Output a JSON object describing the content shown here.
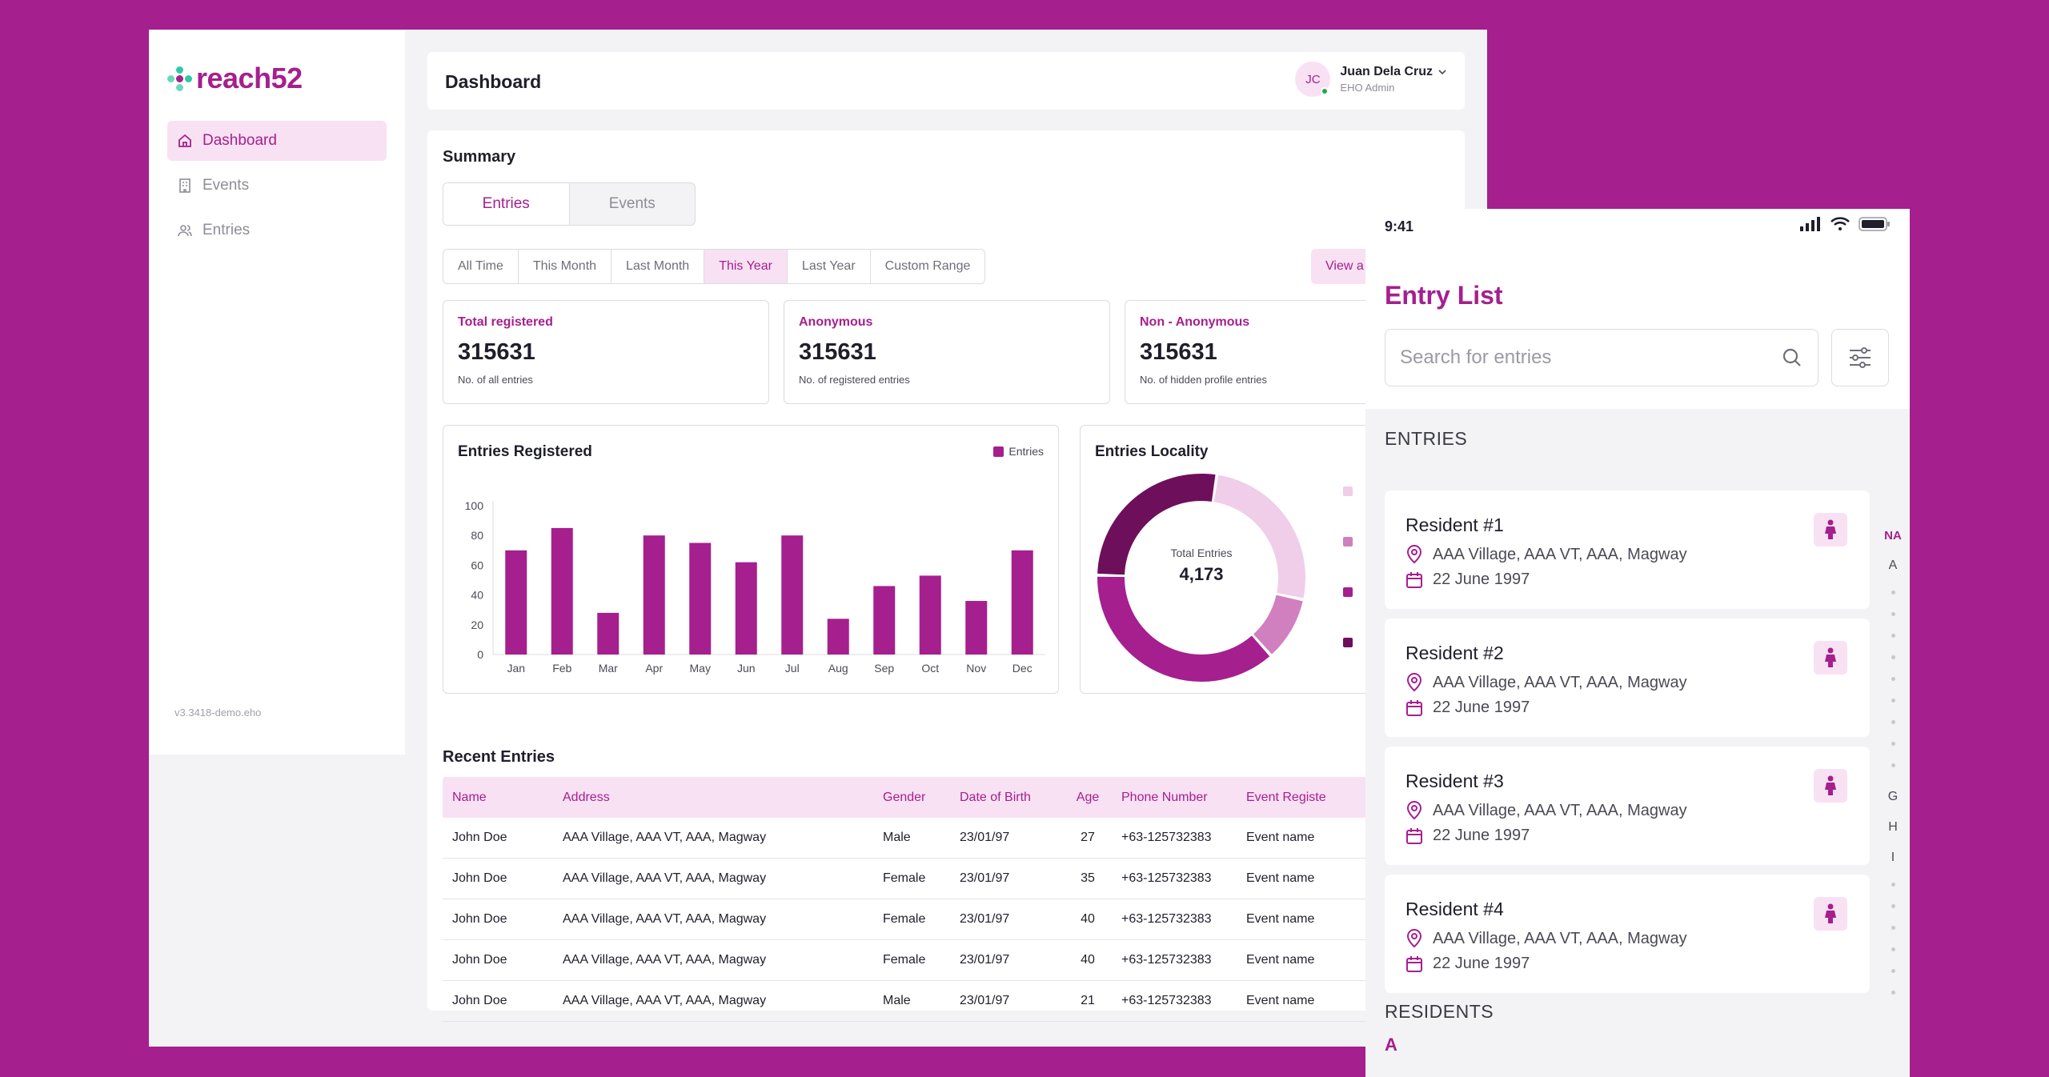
{
  "brand": {
    "name": "reach52",
    "accent": "#a51f8e",
    "accent_light": "#f8e1f3"
  },
  "sidebar": {
    "items": [
      {
        "label": "Dashboard",
        "icon": "home-icon",
        "active": true
      },
      {
        "label": "Events",
        "icon": "building-icon",
        "active": false
      },
      {
        "label": "Entries",
        "icon": "users-icon",
        "active": false
      }
    ],
    "version": "v3.3418-demo.eho"
  },
  "header": {
    "title": "Dashboard",
    "user": {
      "initials": "JC",
      "name": "Juan Dela Cruz",
      "role": "EHO Admin"
    }
  },
  "summary": {
    "title": "Summary",
    "tabs": [
      "Entries",
      "Events"
    ],
    "active_tab": "Entries",
    "filters": [
      "All Time",
      "This Month",
      "Last Month",
      "This Year",
      "Last Year",
      "Custom Range"
    ],
    "active_filter": "This Year",
    "view_all_label": "View a",
    "stats": [
      {
        "label": "Total registered",
        "value": "315631",
        "sub": "No. of all entries"
      },
      {
        "label": "Anonymous",
        "value": "315631",
        "sub": "No. of registered entries"
      },
      {
        "label": "Non - Anonymous",
        "value": "315631",
        "sub": "No. of hidden profile entries"
      }
    ]
  },
  "chart_data": [
    {
      "type": "bar",
      "title": "Entries Registered",
      "categories": [
        "Jan",
        "Feb",
        "Mar",
        "Apr",
        "May",
        "Jun",
        "Jul",
        "Aug",
        "Sep",
        "Oct",
        "Nov",
        "Dec"
      ],
      "series": [
        {
          "name": "Entries",
          "values": [
            70,
            85,
            28,
            80,
            75,
            62,
            80,
            24,
            46,
            53,
            36,
            70
          ]
        }
      ],
      "yticks": [
        0,
        20,
        40,
        60,
        80,
        100
      ],
      "ylim": [
        0,
        100
      ],
      "color": "#a51f8e"
    },
    {
      "type": "pie",
      "title": "Entries Locality",
      "center_label": "Total Entries",
      "center_value": "4,173",
      "slices": [
        {
          "value": 26,
          "color": "#f0cde9"
        },
        {
          "value": 10,
          "color": "#d07fbf"
        },
        {
          "value": 37,
          "color": "#a51f8e"
        },
        {
          "value": 27,
          "color": "#6e0f5b"
        }
      ]
    }
  ],
  "recent": {
    "title": "Recent Entries",
    "columns": [
      "Name",
      "Address",
      "Gender",
      "Date of Birth",
      "Age",
      "Phone Number",
      "Event Registe"
    ],
    "rows": [
      [
        "John Doe",
        "AAA Village, AAA VT, AAA, Magway",
        "Male",
        "23/01/97",
        "27",
        "+63-125732383",
        "Event name"
      ],
      [
        "John Doe",
        "AAA Village, AAA VT, AAA, Magway",
        "Female",
        "23/01/97",
        "35",
        "+63-125732383",
        "Event name"
      ],
      [
        "John Doe",
        "AAA Village, AAA VT, AAA, Magway",
        "Female",
        "23/01/97",
        "40",
        "+63-125732383",
        "Event name"
      ],
      [
        "John Doe",
        "AAA Village, AAA VT, AAA, Magway",
        "Female",
        "23/01/97",
        "40",
        "+63-125732383",
        "Event name"
      ],
      [
        "John Doe",
        "AAA Village, AAA VT, AAA, Magway",
        "Male",
        "23/01/97",
        "21",
        "+63-125732383",
        "Event name"
      ]
    ]
  },
  "mobile": {
    "time": "9:41",
    "title": "Entry List",
    "search_placeholder": "Search for entries",
    "entries_heading": "ENTRIES",
    "residents_heading": "RESIDENTS",
    "residents_letter": "A",
    "entries": [
      {
        "name": "Resident #1",
        "address": "AAA Village, AAA VT, AAA, Magway",
        "date": "22 June 1997"
      },
      {
        "name": "Resident #2",
        "address": "AAA Village, AAA VT, AAA, Magway",
        "date": "22 June 1997"
      },
      {
        "name": "Resident #3",
        "address": "AAA Village, AAA VT, AAA, Magway",
        "date": "22 June 1997"
      },
      {
        "name": "Resident #4",
        "address": "AAA Village, AAA VT, AAA, Magway",
        "date": "22 June 1997"
      }
    ],
    "az_index": {
      "top": "NA",
      "letters_a": "A",
      "letters_b": [
        "G",
        "H",
        "I"
      ]
    }
  }
}
